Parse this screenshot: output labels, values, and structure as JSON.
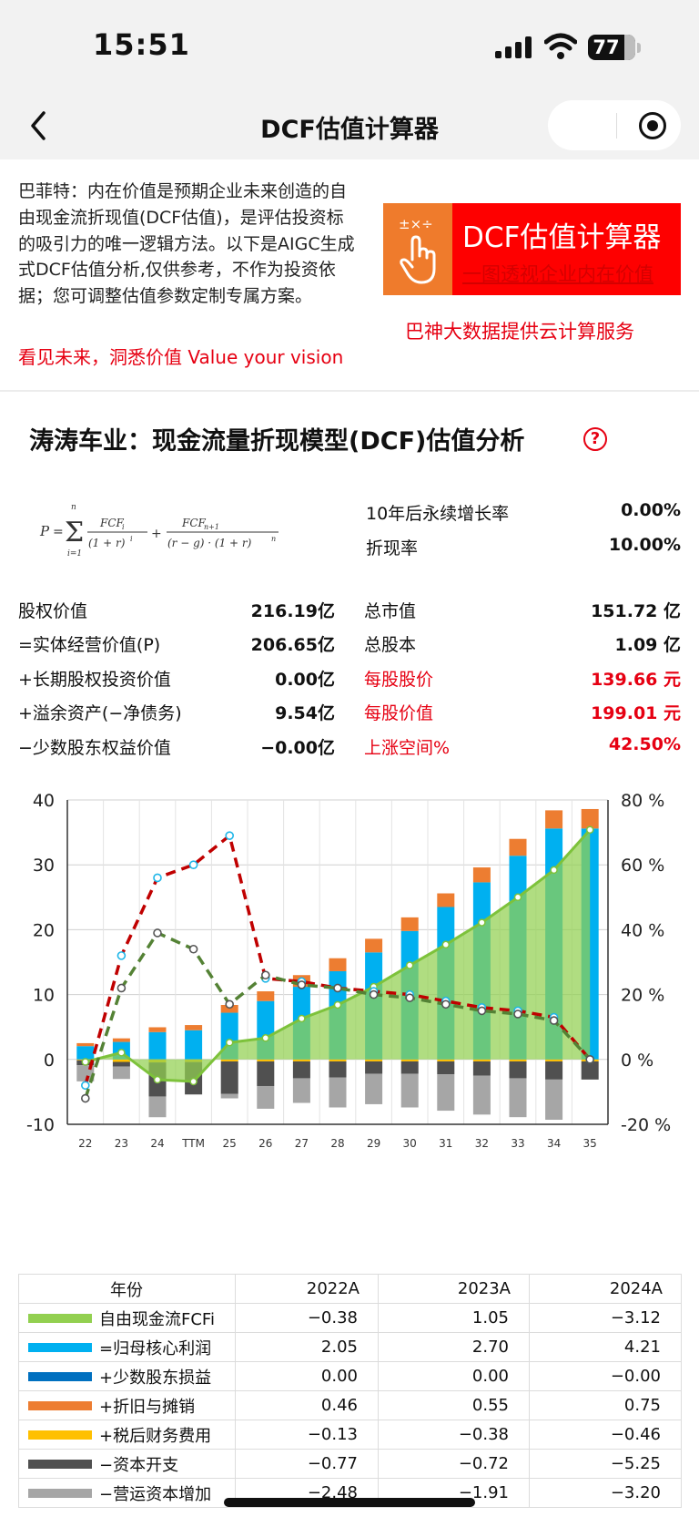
{
  "status_bar": {
    "time": "15:51",
    "battery": "77"
  },
  "nav": {
    "title": "DCF估值计算器"
  },
  "intro": {
    "text": "巴菲特：内在价值是预期企业未来创造的自由现金流折现值(DCF估值)，是评估投资标的吸引力的唯一逻辑方法。以下是AIGC生成式DCF估值分析,仅供参考，不作为投资依据；您可调整估值参数定制专属方案。",
    "slogan": "看见未来，洞悉价值 Value your vision",
    "banner_ops": "±×÷",
    "banner_title": "DCF估值计算器",
    "banner_subtitle": "一图透视企业内在价值",
    "cloud_note": "巴神大数据提供云计算服务"
  },
  "analysis": {
    "title": "涛涛车业：现金流量折现模型(DCF)估值分析",
    "help": "?",
    "params": [
      {
        "label": "10年后永续增长率",
        "value": "0.00%"
      },
      {
        "label": "折现率",
        "value": "10.00%"
      }
    ],
    "left_metrics": [
      {
        "label": "股权价值",
        "value": "216.19亿"
      },
      {
        "label": "=实体经营价值(P)",
        "value": "206.65亿"
      },
      {
        "label": "+长期股权投资价值",
        "value": "0.00亿"
      },
      {
        "label": "+溢余资产(−净债务)",
        "value": "9.54亿"
      },
      {
        "label": "−少数股东权益价值",
        "value": "−0.00亿"
      }
    ],
    "right_metrics": [
      {
        "label": "总市值",
        "value": "151.72 亿",
        "red": false
      },
      {
        "label": "总股本",
        "value": "1.09 亿",
        "red": false
      },
      {
        "label": "每股股价",
        "value": "139.66 元",
        "red": true
      },
      {
        "label": "每股价值",
        "value": "199.01 元",
        "red": true
      },
      {
        "label": "上涨空间%",
        "value": "42.50%",
        "red": true
      }
    ]
  },
  "chart_data": {
    "type": "bar",
    "categories": [
      "22",
      "23",
      "24",
      "TTM",
      "25",
      "26",
      "27",
      "28",
      "29",
      "30",
      "31",
      "32",
      "33",
      "34",
      "35"
    ],
    "ylim": [
      -10,
      40
    ],
    "y2lim": [
      -20,
      80
    ],
    "yticks": [
      "40",
      "30",
      "20",
      "10",
      "0",
      "-10"
    ],
    "y2ticks": [
      "80 %",
      "60 %",
      "40 %",
      "20 %",
      "0 %",
      "-20 %"
    ],
    "grid": true,
    "series": [
      {
        "name": "=归母核心利润",
        "kind": "bar",
        "color": "#00b0f0",
        "values": [
          2.05,
          2.7,
          4.21,
          4.5,
          7.2,
          9.0,
          11.2,
          13.6,
          16.5,
          19.8,
          23.5,
          27.3,
          31.4,
          35.6,
          35.6
        ]
      },
      {
        "name": "+少数股东损益",
        "kind": "bar",
        "color": "#0070c0",
        "values": [
          0.0,
          0.0,
          -0.0,
          0,
          0,
          0,
          0,
          0,
          0,
          0,
          0,
          0,
          0,
          0,
          0
        ]
      },
      {
        "name": "+折旧与摊销",
        "kind": "bar",
        "color": "#ed7d31",
        "values": [
          0.46,
          0.55,
          0.75,
          0.8,
          1.2,
          1.5,
          1.8,
          2.0,
          2.1,
          2.1,
          2.1,
          2.3,
          2.6,
          2.8,
          3.0
        ]
      },
      {
        "name": "+税后财务费用",
        "kind": "bar",
        "color": "#ffc000",
        "values": [
          -0.13,
          -0.38,
          -0.46,
          -0.4,
          -0.3,
          -0.3,
          -0.3,
          -0.3,
          -0.3,
          -0.3,
          -0.3,
          -0.3,
          -0.3,
          -0.3,
          -0.3
        ]
      },
      {
        "name": "−资本开支",
        "kind": "bar",
        "color": "#505050",
        "values": [
          -0.77,
          -0.72,
          -5.25,
          -5.0,
          -5.0,
          -3.8,
          -2.6,
          -2.5,
          -1.9,
          -1.9,
          -2.0,
          -2.2,
          -2.6,
          -2.8,
          -2.8
        ]
      },
      {
        "name": "−营运资本增加",
        "kind": "bar",
        "color": "#a6a6a6",
        "values": [
          -2.48,
          -1.91,
          -3.2,
          0,
          -0.7,
          -3.5,
          -3.8,
          -4.6,
          -4.7,
          -5.2,
          -5.6,
          -6.0,
          -6.0,
          -6.2,
          0
        ]
      },
      {
        "name": "自由现金流FCFi",
        "kind": "area",
        "color": "#92d050",
        "values": [
          -0.38,
          1.05,
          -3.12,
          -3.4,
          2.6,
          3.3,
          6.3,
          8.4,
          11.2,
          14.5,
          17.7,
          21.1,
          25.0,
          29.2,
          35.4
        ]
      }
    ],
    "growth_lines": [
      {
        "color": "#c00000",
        "values": [
          -8,
          32,
          56,
          60,
          69,
          25,
          24,
          22,
          21,
          20,
          18,
          16,
          15,
          13,
          0
        ]
      },
      {
        "color": "#548235",
        "values": [
          -12,
          22,
          39,
          34,
          17,
          26,
          23,
          22,
          20,
          19,
          17,
          15,
          14,
          12,
          0
        ]
      }
    ]
  },
  "table": {
    "header": {
      "label": "年份",
      "cols": [
        "2022A",
        "2023A",
        "2024A"
      ]
    },
    "rows": [
      {
        "label": "自由现金流FCFi",
        "color": "#92d050",
        "values": [
          "−0.38",
          "1.05",
          "−3.12"
        ]
      },
      {
        "label": "=归母核心利润",
        "color": "#00b0f0",
        "values": [
          "2.05",
          "2.70",
          "4.21"
        ]
      },
      {
        "label": "+少数股东损益",
        "color": "#0070c0",
        "values": [
          "0.00",
          "0.00",
          "−0.00"
        ]
      },
      {
        "label": "+折旧与摊销",
        "color": "#ed7d31",
        "values": [
          "0.46",
          "0.55",
          "0.75"
        ]
      },
      {
        "label": "+税后财务费用",
        "color": "#ffc000",
        "values": [
          "−0.13",
          "−0.38",
          "−0.46"
        ]
      },
      {
        "label": "−资本开支",
        "color": "#505050",
        "values": [
          "−0.77",
          "−0.72",
          "−5.25"
        ]
      },
      {
        "label": "−营运资本增加",
        "color": "#a6a6a6",
        "values": [
          "−2.48",
          "−1.91",
          "−3.20"
        ]
      }
    ]
  }
}
